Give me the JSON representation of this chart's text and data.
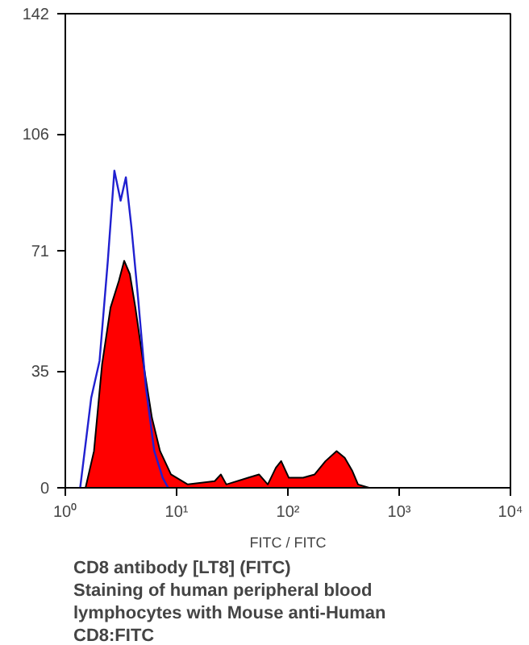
{
  "chart_data": {
    "type": "area",
    "xlabel": "FITC / FITC",
    "log": "x",
    "xlim": [
      1,
      10000
    ],
    "ylim": [
      0,
      142
    ],
    "xticks": [
      {
        "value": 1,
        "label": "10⁰"
      },
      {
        "value": 10,
        "label": "10¹"
      },
      {
        "value": 100,
        "label": "10²"
      },
      {
        "value": 1000,
        "label": "10³"
      },
      {
        "value": 10000,
        "label": "10⁴"
      }
    ],
    "yticks": [
      0,
      35,
      71,
      106,
      142
    ],
    "grid": false,
    "series": [
      {
        "color": "#ff0000",
        "x": [
          1.52,
          1.81,
          2.14,
          2.55,
          3.03,
          3.38,
          3.8,
          4.26,
          5.04,
          6.0,
          7.1,
          8.9,
          12.6,
          22,
          25,
          28,
          44,
          55,
          66,
          78,
          87,
          102,
          137,
          174,
          218,
          274,
          324,
          380,
          427,
          537
        ],
        "values": [
          0,
          11,
          37,
          54,
          62,
          68,
          64,
          54,
          37,
          21,
          11,
          4,
          1,
          2,
          4,
          1,
          3,
          4,
          1,
          6,
          8,
          3,
          3,
          4,
          8,
          11,
          9,
          5,
          1,
          0
        ]
      },
      {
        "type": "line",
        "color": "#2020d0",
        "x": [
          1.36,
          1.71,
          2.03,
          2.41,
          2.76,
          3.14,
          3.5,
          3.93,
          4.5,
          5.3,
          6.3,
          7.5,
          8.4
        ],
        "values": [
          0,
          27,
          38,
          68,
          95,
          86,
          93,
          78,
          57,
          30,
          11,
          3,
          0
        ]
      }
    ],
    "annotations": [
      "CD8 antibody [LT8] (FITC)",
      "Staining of human peripheral blood",
      "lymphocytes with Mouse anti-Human",
      "CD8:FITC"
    ]
  }
}
